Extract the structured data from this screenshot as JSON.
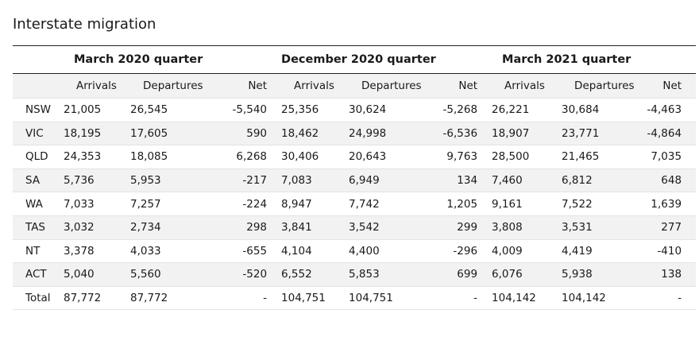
{
  "title": "Interstate migration",
  "groups": [
    "March 2020 quarter",
    "December 2020 quarter",
    "March 2021 quarter"
  ],
  "columns": [
    "Arrivals",
    "Departures",
    "Net"
  ],
  "rows": [
    {
      "label": "NSW",
      "values": [
        "21,005",
        "26,545",
        "-5,540",
        "25,356",
        "30,624",
        "-5,268",
        "26,221",
        "30,684",
        "-4,463"
      ]
    },
    {
      "label": "VIC",
      "values": [
        "18,195",
        "17,605",
        "590",
        "18,462",
        "24,998",
        "-6,536",
        "18,907",
        "23,771",
        "-4,864"
      ]
    },
    {
      "label": "QLD",
      "values": [
        "24,353",
        "18,085",
        "6,268",
        "30,406",
        "20,643",
        "9,763",
        "28,500",
        "21,465",
        "7,035"
      ]
    },
    {
      "label": "SA",
      "values": [
        "5,736",
        "5,953",
        "-217",
        "7,083",
        "6,949",
        "134",
        "7,460",
        "6,812",
        "648"
      ]
    },
    {
      "label": "WA",
      "values": [
        "7,033",
        "7,257",
        "-224",
        "8,947",
        "7,742",
        "1,205",
        "9,161",
        "7,522",
        "1,639"
      ]
    },
    {
      "label": "TAS",
      "values": [
        "3,032",
        "2,734",
        "298",
        "3,841",
        "3,542",
        "299",
        "3,808",
        "3,531",
        "277"
      ]
    },
    {
      "label": "NT",
      "values": [
        "3,378",
        "4,033",
        "-655",
        "4,104",
        "4,400",
        "-296",
        "4,009",
        "4,419",
        "-410"
      ]
    },
    {
      "label": "ACT",
      "values": [
        "5,040",
        "5,560",
        "-520",
        "6,552",
        "5,853",
        "699",
        "6,076",
        "5,938",
        "138"
      ]
    },
    {
      "label": "Total",
      "values": [
        "87,772",
        "87,772",
        "-",
        "104,751",
        "104,751",
        "-",
        "104,142",
        "104,142",
        "-"
      ]
    }
  ]
}
